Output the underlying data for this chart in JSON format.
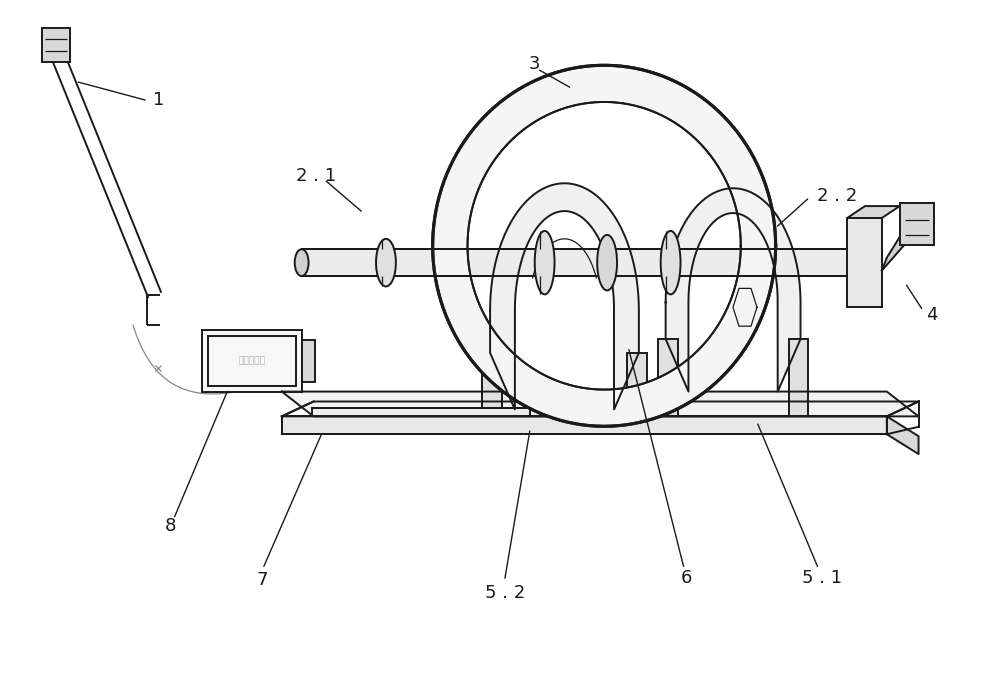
{
  "bg_color": "#ffffff",
  "line_color": "#1a1a1a",
  "gray_color": "#888888",
  "light_gray": "#d8d8d8",
  "mid_gray": "#c0c0c0",
  "fig_width": 10.0,
  "fig_height": 6.8,
  "lw_main": 1.4,
  "lw_thin": 0.9,
  "lw_thick": 2.2,
  "font_size": 13
}
